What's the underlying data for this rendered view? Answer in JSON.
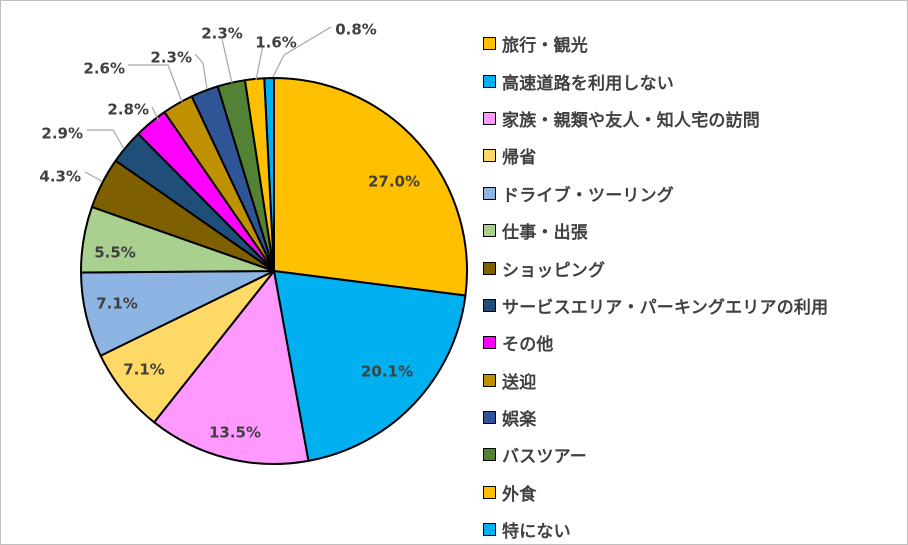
{
  "chart_data": {
    "type": "pie",
    "title": "",
    "legend_position": "right",
    "label_format": "{value}%",
    "categories": [
      "旅行・観光",
      "高速道路を利用しない",
      "家族・親類や友人・知人宅の訪問",
      "帰省",
      "ドライブ・ツーリング",
      "仕事・出張",
      "ショッピング",
      "サービスエリア・パーキングエリアの利用",
      "その他",
      "送迎",
      "娯楽",
      "バスツアー",
      "外食",
      "特にない"
    ],
    "values": [
      27.0,
      20.1,
      13.5,
      7.1,
      7.1,
      5.5,
      4.3,
      2.9,
      2.8,
      2.6,
      2.3,
      2.3,
      1.6,
      0.8
    ],
    "colors": [
      "#ffc000",
      "#00b0f0",
      "#ff99ff",
      "#ffd966",
      "#8db4e2",
      "#a9d08e",
      "#7f6000",
      "#1f4e79",
      "#ff00ff",
      "#bf9000",
      "#2f5597",
      "#548235",
      "#ffc000",
      "#00b0f0"
    ]
  }
}
